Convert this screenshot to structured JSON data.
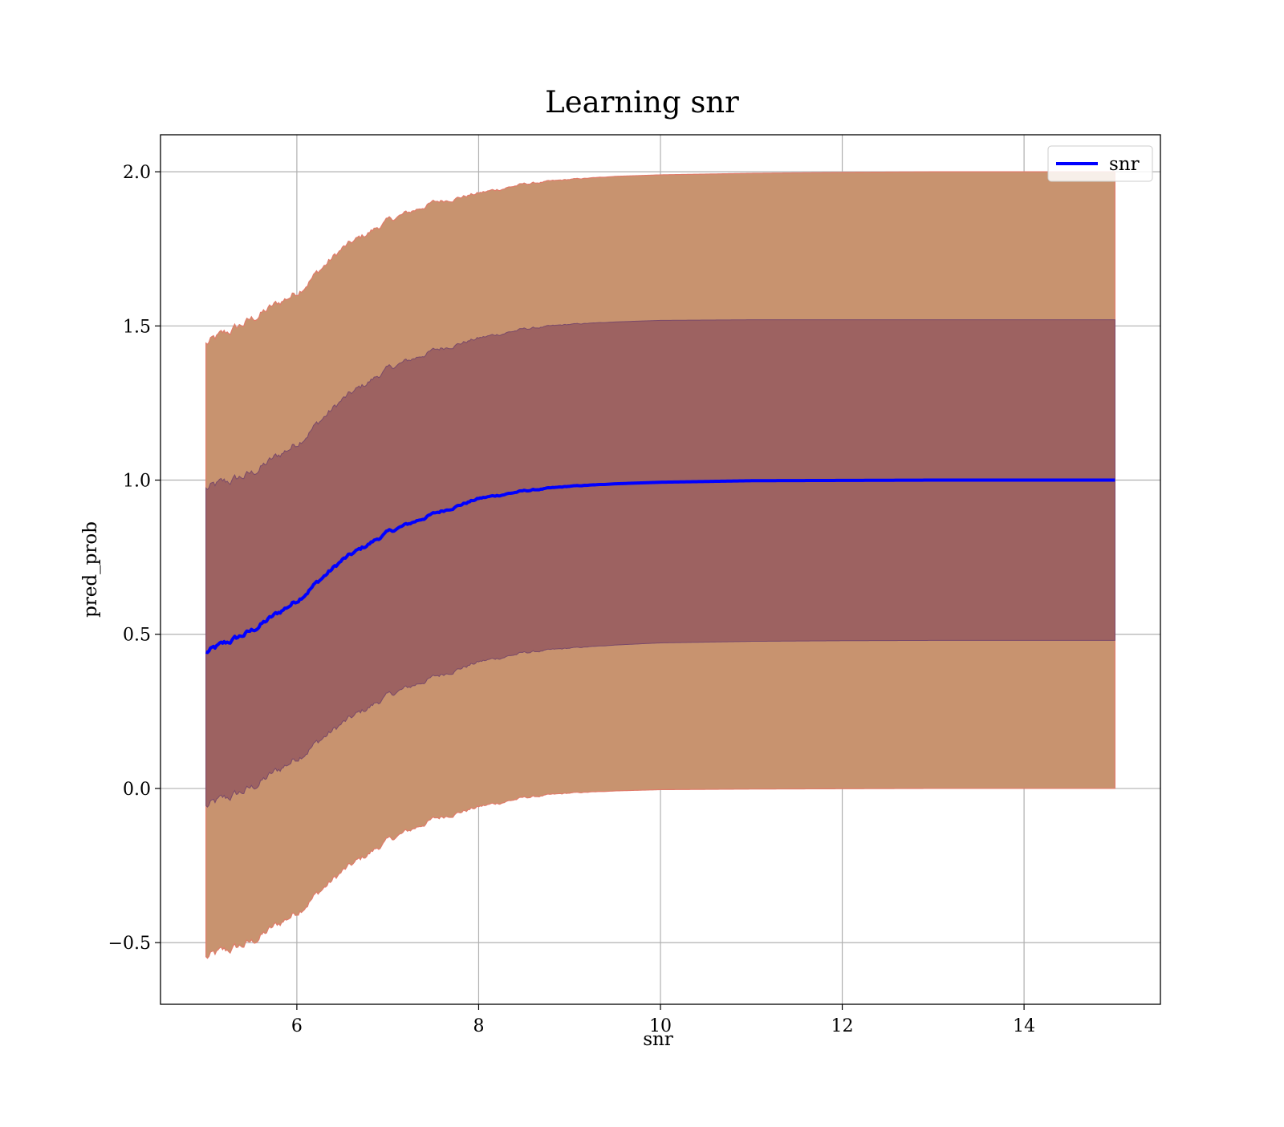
{
  "chart_data": {
    "type": "line",
    "title": "Learning snr",
    "xlabel": "snr",
    "ylabel": "pred_prob",
    "xlim": [
      4.5,
      15.5
    ],
    "ylim": [
      -0.7,
      2.12
    ],
    "xticks": [
      6,
      8,
      10,
      12,
      14
    ],
    "xtick_labels": [
      "6",
      "8",
      "10",
      "12",
      "14"
    ],
    "yticks": [
      -0.5,
      0.0,
      0.5,
      1.0,
      1.5,
      2.0
    ],
    "ytick_labels": [
      "−0.5",
      "0.0",
      "0.5",
      "1.0",
      "1.5",
      "2.0"
    ],
    "grid": true,
    "legend_position": "top-right",
    "legend": [
      "snr"
    ],
    "x": [
      5.0,
      5.5,
      6.0,
      6.5,
      7.0,
      7.5,
      8.0,
      8.5,
      9.0,
      9.5,
      10.0,
      11.0,
      12.0,
      13.0,
      14.0,
      15.0
    ],
    "series": [
      {
        "name": "snr",
        "role": "line",
        "color": "#0000ff",
        "values": [
          0.44,
          0.51,
          0.61,
          0.74,
          0.83,
          0.89,
          0.94,
          0.965,
          0.98,
          0.988,
          0.993,
          0.998,
          0.999,
          1.0,
          1.0,
          1.0
        ]
      },
      {
        "role": "inner_band",
        "color": "#7a3a55",
        "lower": [
          -0.06,
          0.0,
          0.1,
          0.21,
          0.3,
          0.36,
          0.41,
          0.44,
          0.455,
          0.465,
          0.472,
          0.477,
          0.479,
          0.48,
          0.48,
          0.48
        ],
        "upper": [
          0.97,
          1.02,
          1.12,
          1.26,
          1.36,
          1.42,
          1.46,
          1.49,
          1.505,
          1.513,
          1.518,
          1.52,
          1.52,
          1.52,
          1.52,
          1.52
        ]
      },
      {
        "role": "outer_band",
        "color": "#c8936f",
        "lower": [
          -0.55,
          -0.5,
          -0.4,
          -0.27,
          -0.17,
          -0.1,
          -0.06,
          -0.03,
          -0.015,
          -0.008,
          -0.004,
          -0.002,
          -0.001,
          0.0,
          0.0,
          0.0
        ],
        "upper": [
          1.44,
          1.52,
          1.61,
          1.75,
          1.84,
          1.9,
          1.93,
          1.96,
          1.975,
          1.985,
          1.99,
          1.995,
          1.998,
          2.0,
          2.0,
          2.0
        ]
      }
    ]
  }
}
